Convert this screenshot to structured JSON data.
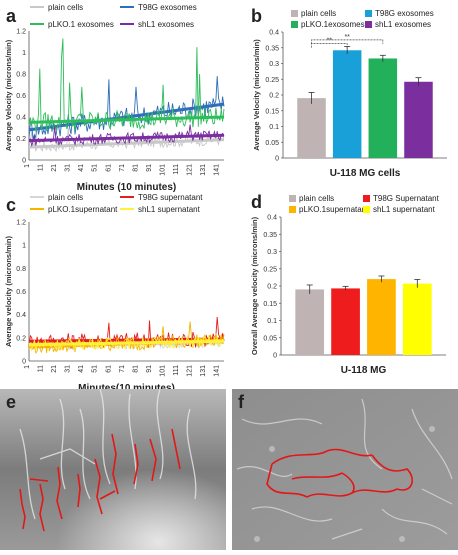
{
  "panel_labels": [
    "a",
    "b",
    "c",
    "d",
    "e",
    "f"
  ],
  "chart_data": [
    {
      "panel": "a",
      "type": "line",
      "ylabel": "Average Velocity (microns/min)",
      "xlabel": "Minutes (10 minutes)",
      "ylim": [
        0,
        1.2
      ],
      "yticks": [
        "0",
        "0.2",
        "0.4",
        "0.6",
        "0.8",
        "1",
        "1.2"
      ],
      "xticks": [
        "1",
        "11",
        "21",
        "31",
        "41",
        "51",
        "61",
        "71",
        "81",
        "91",
        "101",
        "111",
        "121",
        "131",
        "141"
      ],
      "x_range": [
        1,
        145
      ],
      "legend_position": "top",
      "series": [
        {
          "name": "plain cells",
          "color": "#c8c8c8",
          "trend": [
            0.12,
            0.19
          ],
          "noise": 0.05,
          "peaks": {
            "3": 0.28,
            "30": 0.3
          }
        },
        {
          "name": "T98G exosomes",
          "color": "#2f6fb7",
          "trend": [
            0.28,
            0.52
          ],
          "noise": 0.1,
          "peaks": {
            "60": 0.75,
            "80": 0.68,
            "140": 0.78
          }
        },
        {
          "name": "pLKO.1 exosomes",
          "color": "#2ebd5b",
          "trend": [
            0.35,
            0.4
          ],
          "noise": 0.09,
          "peaks": {
            "9": 0.85,
            "25": 0.95,
            "26": 1.13,
            "31": 0.72,
            "40": 0.68,
            "100": 0.7,
            "125": 1.05,
            "127": 0.8
          }
        },
        {
          "name": "shL1 exosomes",
          "color": "#7a2ea0",
          "trend": [
            0.18,
            0.23
          ],
          "noise": 0.05,
          "peaks": {
            "20": 0.32,
            "120": 0.33
          }
        }
      ]
    },
    {
      "panel": "b",
      "type": "bar",
      "categories": [
        "plain cells",
        "T98G exosomes",
        "pLKO.1exosomes",
        "shL1 exosomes"
      ],
      "values": [
        0.19,
        0.342,
        0.316,
        0.242
      ],
      "errors": [
        0.018,
        0.012,
        0.01,
        0.013
      ],
      "colors": [
        "#bfb3b3",
        "#1aa0d8",
        "#22b05a",
        "#7b2f9e"
      ],
      "ylabel": "Average Velocity (microns/min)",
      "xlabel": "U-118 MG cells",
      "ylim": [
        0,
        0.4
      ],
      "yticks": [
        "0",
        "0.05",
        "0.1",
        "0.15",
        "0.2",
        "0.25",
        "0.3",
        "0.35",
        "0.4"
      ],
      "significance": [
        "**",
        "**"
      ],
      "legend_position": "top"
    },
    {
      "panel": "c",
      "type": "line",
      "ylabel": "Average velocity (microns/min)",
      "xlabel": "Minutes(10 minutes)",
      "ylim": [
        0,
        1.2
      ],
      "yticks": [
        "0",
        "0.2",
        "0.4",
        "0.6",
        "0.8",
        "1",
        "1.2"
      ],
      "xticks": [
        "1",
        "11",
        "21",
        "31",
        "41",
        "51",
        "61",
        "71",
        "81",
        "91",
        "101",
        "111",
        "121",
        "131",
        "141"
      ],
      "x_range": [
        1,
        145
      ],
      "legend_position": "top",
      "series": [
        {
          "name": "plain cells",
          "color": "#d6d6d6",
          "trend": [
            0.13,
            0.16
          ],
          "noise": 0.04,
          "peaks": {}
        },
        {
          "name": "T98G supernatant",
          "color": "#e41e1e",
          "trend": [
            0.17,
            0.19
          ],
          "noise": 0.07,
          "peaks": {
            "60": 0.33,
            "90": 0.35,
            "140": 0.38
          }
        },
        {
          "name": "pLKO.1supernatant",
          "color": "#f5b400",
          "trend": [
            0.12,
            0.18
          ],
          "noise": 0.06,
          "peaks": {
            "100": 0.3,
            "120": 0.34
          }
        },
        {
          "name": "shL1 supernatant",
          "color": "#fff03a",
          "trend": [
            0.14,
            0.17
          ],
          "noise": 0.05,
          "peaks": {}
        }
      ]
    },
    {
      "panel": "d",
      "type": "bar",
      "categories": [
        "plain cells",
        "T98G Supernatant",
        "pLKO.1supernatant",
        "shL1 supernatant"
      ],
      "values": [
        0.19,
        0.193,
        0.22,
        0.207
      ],
      "errors": [
        0.013,
        0.006,
        0.009,
        0.012
      ],
      "colors": [
        "#bfb3b3",
        "#ee1c1c",
        "#ffb400",
        "#ffff00"
      ],
      "ylabel": "Overall Average velocity (microns/min)",
      "xlabel": "U-118 MG",
      "ylim": [
        0,
        0.4
      ],
      "yticks": [
        "0",
        "0.05",
        "0.1",
        "0.15",
        "0.2",
        "0.25",
        "0.3",
        "0.35",
        "0.4"
      ],
      "legend_position": "top"
    }
  ]
}
